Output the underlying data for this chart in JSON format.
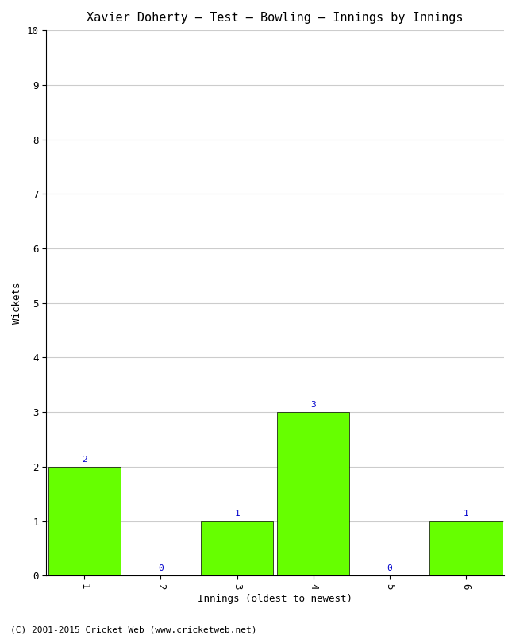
{
  "title": "Xavier Doherty – Test – Bowling – Innings by Innings",
  "xlabel": "Innings (oldest to newest)",
  "ylabel": "Wickets",
  "categories": [
    "1",
    "2",
    "3",
    "4",
    "5",
    "6"
  ],
  "values": [
    2,
    0,
    1,
    3,
    0,
    1
  ],
  "bar_color": "#66ff00",
  "bar_edge_color": "#000000",
  "ylim": [
    0,
    10
  ],
  "yticks": [
    0,
    1,
    2,
    3,
    4,
    5,
    6,
    7,
    8,
    9,
    10
  ],
  "label_color": "#0000cc",
  "label_fontsize": 8,
  "title_fontsize": 11,
  "axis_label_fontsize": 9,
  "tick_fontsize": 9,
  "footer": "(C) 2001-2015 Cricket Web (www.cricketweb.net)",
  "footer_fontsize": 8,
  "background_color": "#ffffff",
  "grid_color": "#cccccc",
  "bar_width": 0.95
}
